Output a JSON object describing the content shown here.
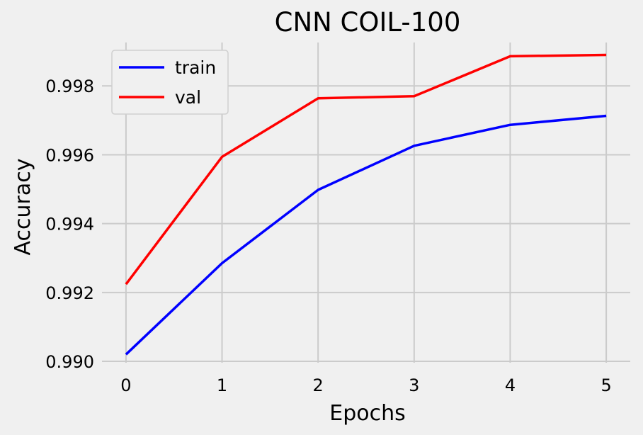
{
  "chart_data": {
    "type": "line",
    "title": "CNN COIL-100",
    "xlabel": "Epochs",
    "ylabel": "Accuracy",
    "x": [
      0,
      1,
      2,
      3,
      4,
      5
    ],
    "xticks": [
      "0",
      "1",
      "2",
      "3",
      "4",
      "5"
    ],
    "yticks": [
      "0.990",
      "0.992",
      "0.994",
      "0.996",
      "0.998"
    ],
    "xlim": [
      -0.25,
      5.25
    ],
    "ylim": [
      0.98996,
      0.99926
    ],
    "grid": true,
    "legend_position": "top-left",
    "series": [
      {
        "name": "train",
        "color": "#0000ff",
        "values": [
          0.9902,
          0.99285,
          0.99498,
          0.99626,
          0.99687,
          0.99713
        ]
      },
      {
        "name": "val",
        "color": "#ff0000",
        "values": [
          0.99224,
          0.99594,
          0.99764,
          0.9977,
          0.99886,
          0.9989
        ]
      }
    ]
  }
}
